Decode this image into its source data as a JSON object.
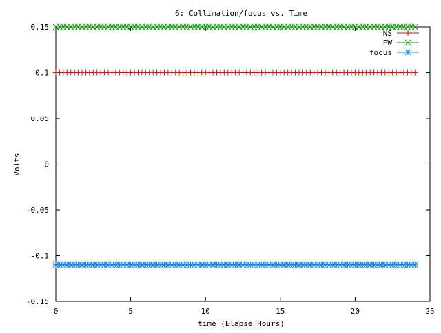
{
  "chart_data": {
    "type": "line",
    "title": "6: Collimation/focus vs. Time",
    "xlabel": "time (Elapse Hours)",
    "ylabel": "Volts",
    "xlim": [
      0,
      25
    ],
    "ylim": [
      -0.15,
      0.15
    ],
    "x_ticks": [
      0,
      5,
      10,
      15,
      20,
      25
    ],
    "x_tick_labels": [
      "0",
      "5",
      "10",
      "15",
      "20",
      "25"
    ],
    "y_ticks": [
      -0.15,
      -0.1,
      -0.05,
      0,
      0.05,
      0.1,
      0.15
    ],
    "y_tick_labels": [
      "-0.15",
      "-0.1",
      "-0.05",
      "0",
      "0.05",
      "0.1",
      "0.15"
    ],
    "grid": false,
    "legend_position": "top-right",
    "x_range": [
      0,
      24
    ],
    "sample_count": 97,
    "series": [
      {
        "name": "NS",
        "value": 0.1,
        "color": "#ff0000",
        "marker": "plus"
      },
      {
        "name": "EW",
        "value": 0.15,
        "color": "#00a000",
        "marker": "cross"
      },
      {
        "name": "focus",
        "value": -0.11,
        "color": "#0080ff",
        "marker": "star"
      }
    ]
  }
}
